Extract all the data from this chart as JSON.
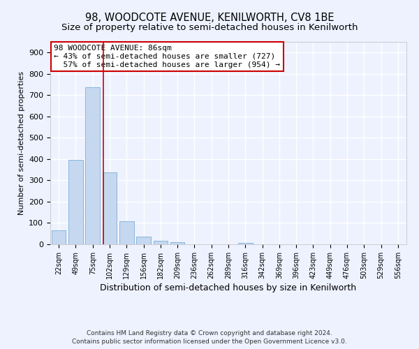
{
  "title": "98, WOODCOTE AVENUE, KENILWORTH, CV8 1BE",
  "subtitle": "Size of property relative to semi-detached houses in Kenilworth",
  "xlabel": "Distribution of semi-detached houses by size in Kenilworth",
  "ylabel": "Number of semi-detached properties",
  "bar_labels": [
    "22sqm",
    "49sqm",
    "75sqm",
    "102sqm",
    "129sqm",
    "156sqm",
    "182sqm",
    "209sqm",
    "236sqm",
    "262sqm",
    "289sqm",
    "316sqm",
    "342sqm",
    "369sqm",
    "396sqm",
    "423sqm",
    "449sqm",
    "476sqm",
    "503sqm",
    "529sqm",
    "556sqm"
  ],
  "bar_values": [
    65,
    395,
    738,
    338,
    107,
    35,
    18,
    10,
    0,
    0,
    0,
    8,
    0,
    0,
    0,
    0,
    0,
    0,
    0,
    0,
    0
  ],
  "bar_color": "#C5D8F0",
  "bar_edge_color": "#7AAED6",
  "vline_x": 2.62,
  "vline_color": "#CC0000",
  "annotation_line1": "98 WOODCOTE AVENUE: 86sqm",
  "annotation_line2": "← 43% of semi-detached houses are smaller (727)",
  "annotation_line3": "  57% of semi-detached houses are larger (954) →",
  "annotation_box_color": "#FFFFFF",
  "annotation_box_edge": "#CC0000",
  "ylim": [
    0,
    950
  ],
  "yticks": [
    0,
    100,
    200,
    300,
    400,
    500,
    600,
    700,
    800,
    900
  ],
  "background_color": "#EEF2FF",
  "grid_color": "#FFFFFF",
  "footer_line1": "Contains HM Land Registry data © Crown copyright and database right 2024.",
  "footer_line2": "Contains public sector information licensed under the Open Government Licence v3.0.",
  "title_fontsize": 10.5,
  "subtitle_fontsize": 9.5
}
